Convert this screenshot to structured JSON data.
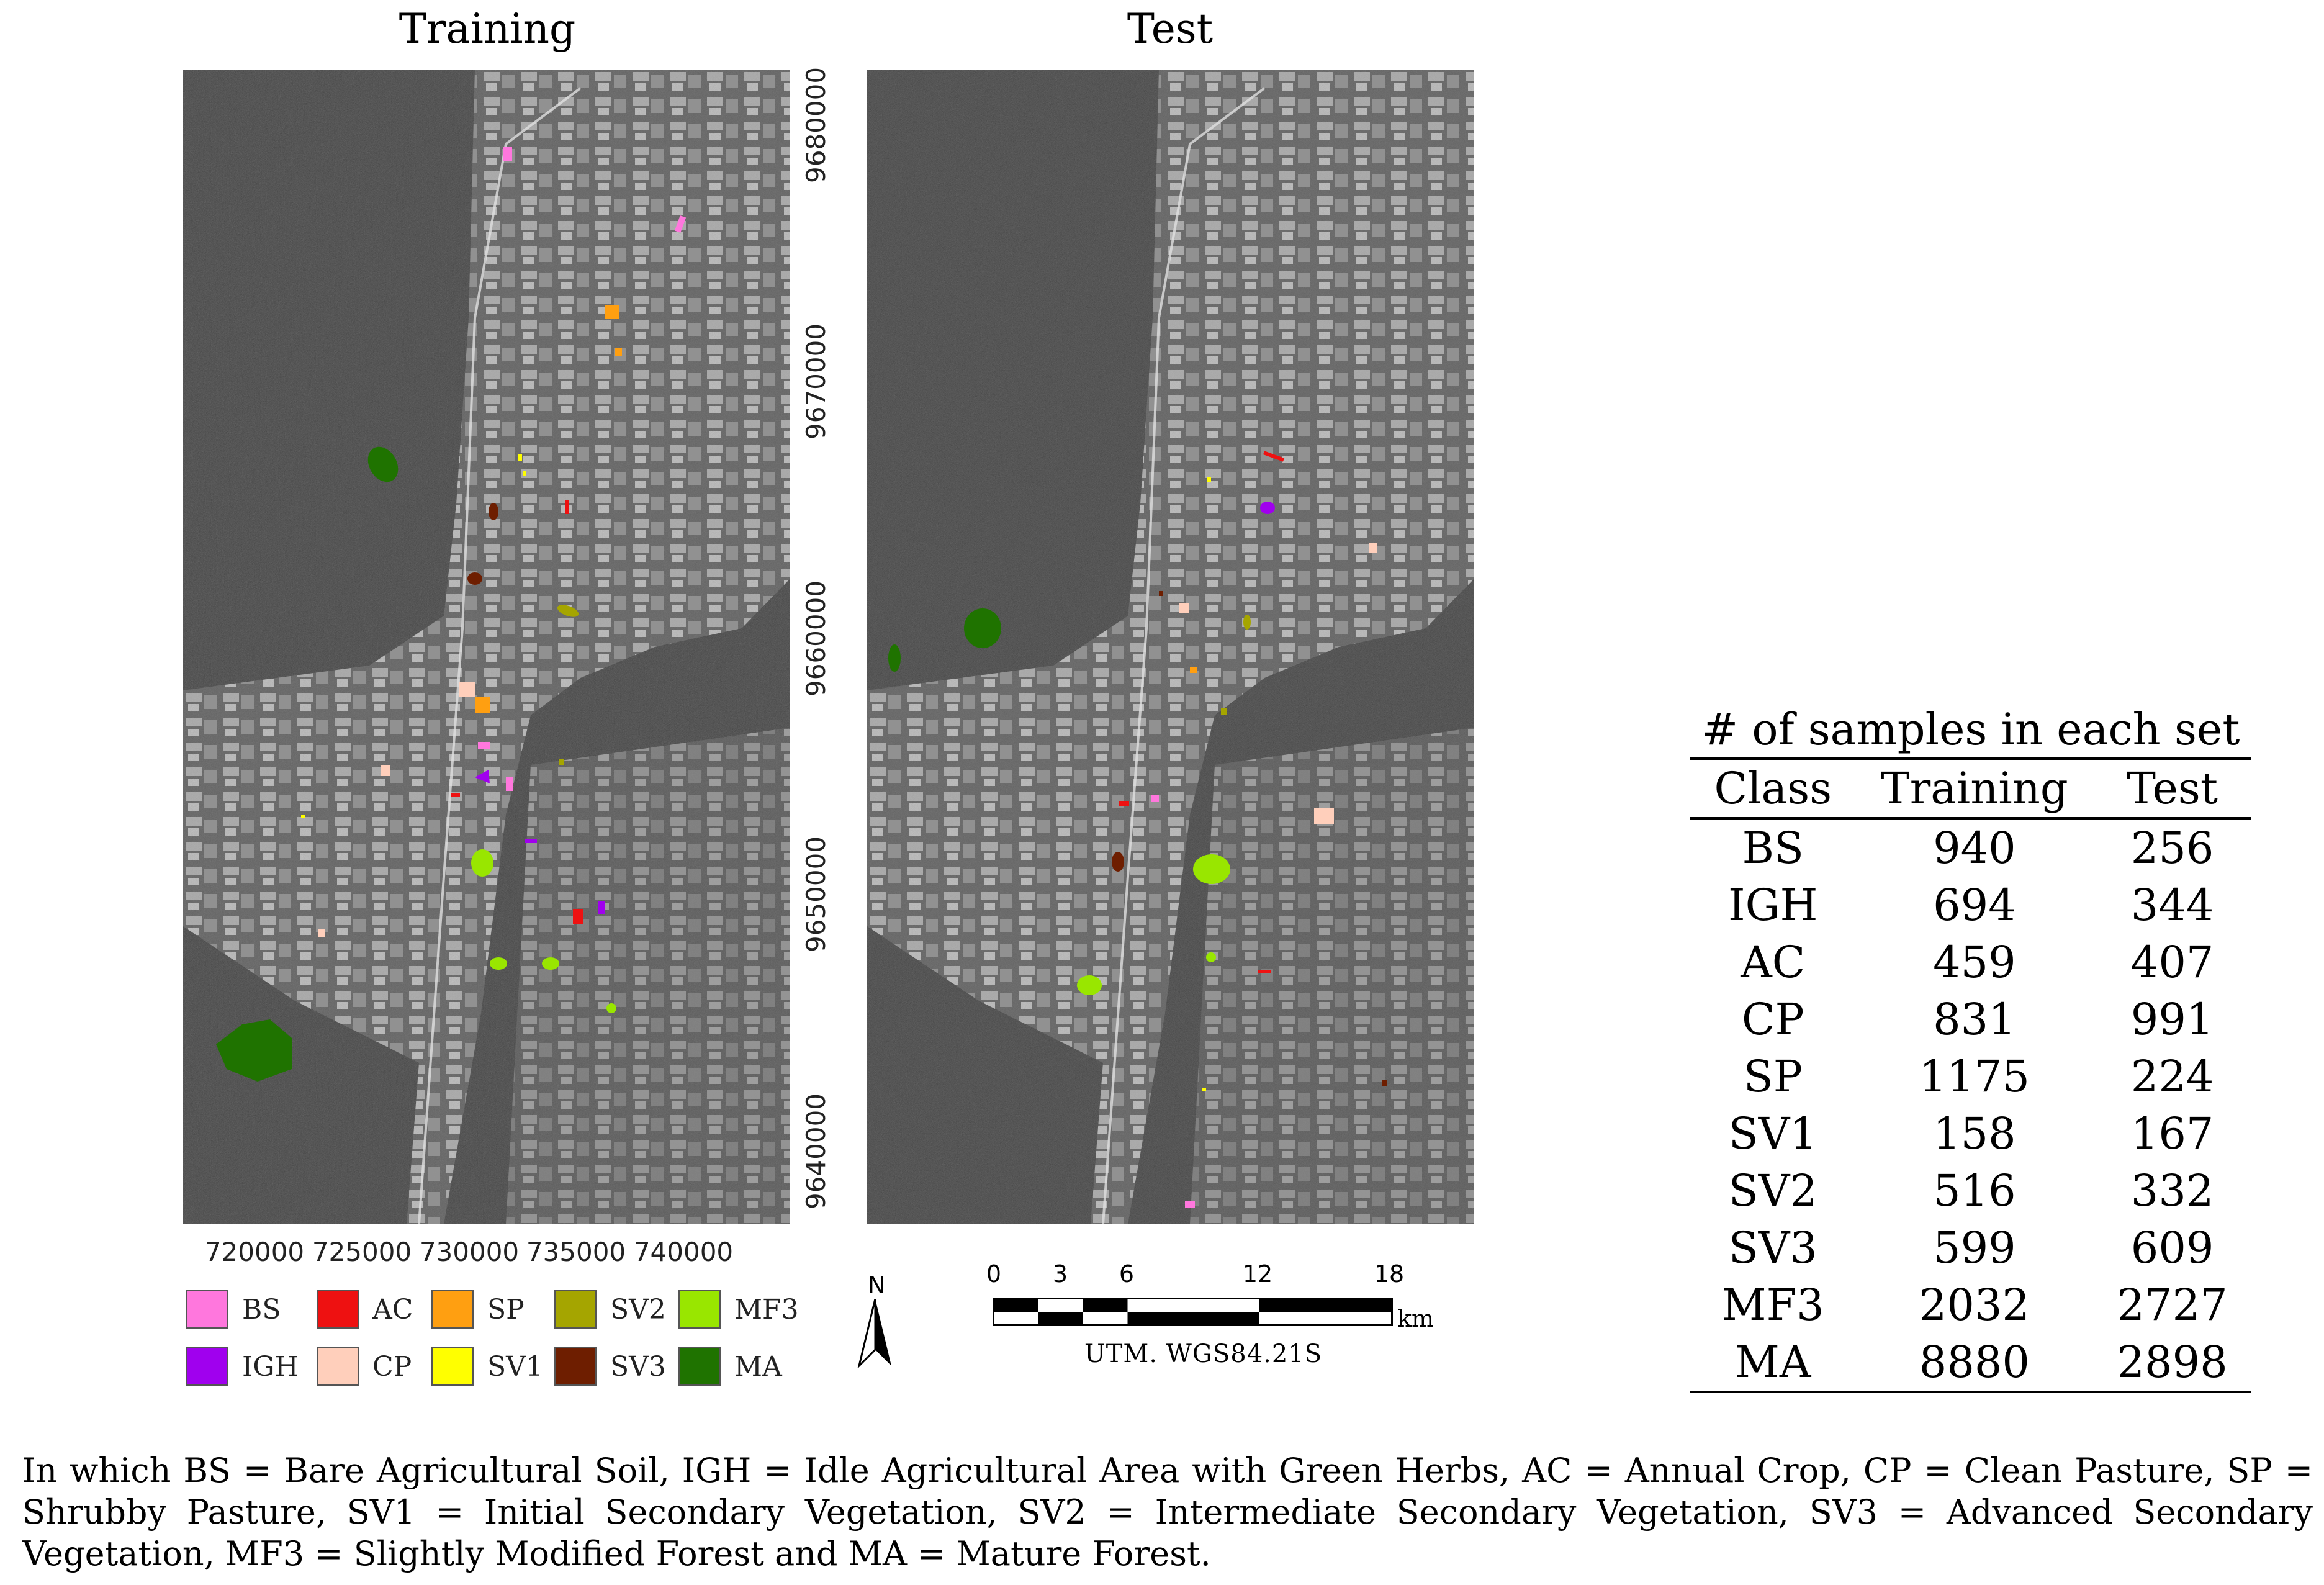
{
  "panels": {
    "training_title": "Training",
    "test_title": "Test"
  },
  "axes": {
    "y_ticks": [
      "9680000",
      "9670000",
      "9660000",
      "9650000",
      "9640000"
    ],
    "x_ticks": [
      "720000",
      "725000",
      "730000",
      "735000",
      "740000"
    ]
  },
  "legend": [
    {
      "code": "BS",
      "color": "#ff77dd"
    },
    {
      "code": "AC",
      "color": "#ee1111"
    },
    {
      "code": "SP",
      "color": "#ff9f11"
    },
    {
      "code": "SV2",
      "color": "#a5a500"
    },
    {
      "code": "MF3",
      "color": "#99e600"
    },
    {
      "code": "IGH",
      "color": "#a000ee"
    },
    {
      "code": "CP",
      "color": "#ffcfbb"
    },
    {
      "code": "SV1",
      "color": "#ffff00"
    },
    {
      "code": "SV3",
      "color": "#6e1e00"
    },
    {
      "code": "MA",
      "color": "#1f7300"
    }
  ],
  "north_arrow": {
    "label": "N"
  },
  "scale_bar": {
    "ticks": [
      "0",
      "3",
      "6",
      "12",
      "18"
    ],
    "unit": "km",
    "projection": "UTM. WGS84.21S"
  },
  "table": {
    "caption": "# of samples in each set",
    "headers": [
      "Class",
      "Training",
      "Test"
    ],
    "rows": [
      [
        "BS",
        "940",
        "256"
      ],
      [
        "IGH",
        "694",
        "344"
      ],
      [
        "AC",
        "459",
        "407"
      ],
      [
        "CP",
        "831",
        "991"
      ],
      [
        "SP",
        "1175",
        "224"
      ],
      [
        "SV1",
        "158",
        "167"
      ],
      [
        "SV2",
        "516",
        "332"
      ],
      [
        "SV3",
        "599",
        "609"
      ],
      [
        "MF3",
        "2032",
        "2727"
      ],
      [
        "MA",
        "8880",
        "2898"
      ]
    ]
  },
  "footnote": "In which BS = Bare Agricultural Soil, IGH = Idle Agricultural Area with Green Herbs, AC = Annual Crop, CP = Clean Pasture, SP = Shrubby Pasture, SV1 = Initial Secondary Vegetation, SV2 = Intermediate Secondary Vegetation, SV3 = Advanced Secondary Vegetation, MF3 = Slightly Modified Forest and MA = Mature Forest."
}
